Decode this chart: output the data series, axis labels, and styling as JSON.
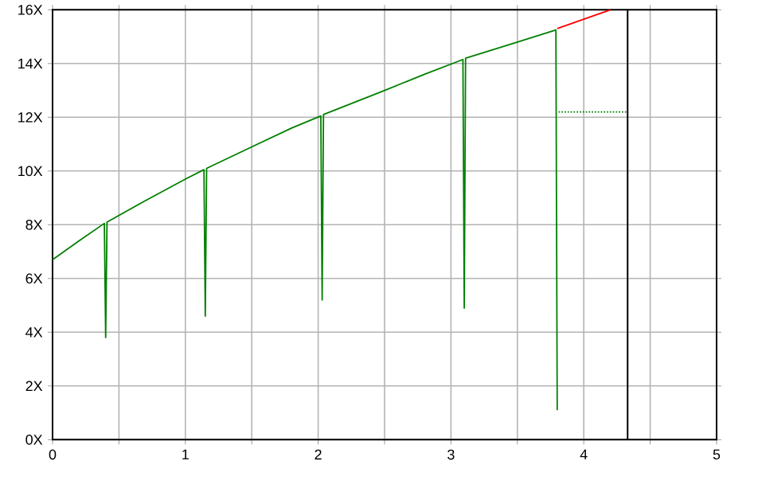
{
  "chart_data": {
    "type": "line",
    "series": [
      {
        "color": "#008000",
        "x": [
          0,
          0.2,
          0.39,
          0.4,
          0.41,
          0.7,
          1.0,
          1.14,
          1.15,
          1.16,
          1.5,
          1.8,
          2.02,
          2.03,
          2.04,
          2.5,
          2.8,
          3.09,
          3.1,
          3.11,
          3.5,
          3.79,
          3.8
        ],
        "values": [
          6.7,
          7.4,
          8.05,
          3.8,
          8.1,
          8.9,
          9.7,
          10.05,
          4.6,
          10.1,
          10.9,
          11.6,
          12.05,
          5.2,
          12.1,
          13.0,
          13.6,
          14.15,
          4.9,
          14.2,
          14.8,
          15.25,
          1.1
        ]
      },
      {
        "color": "#ff0000",
        "x": [
          3.8,
          4.0,
          4.2
        ],
        "values": [
          15.3,
          15.65,
          16.0
        ]
      },
      {
        "color": "#008000",
        "line_style": "dotted",
        "x": [
          3.81,
          4.33
        ],
        "values": [
          12.2,
          12.2
        ]
      }
    ],
    "ref_lines": [
      {
        "axis": "x",
        "value": 4.33,
        "color": "#000000"
      }
    ],
    "xlim": [
      0,
      5
    ],
    "ylim": [
      0,
      16
    ],
    "xticks": [
      0,
      {
        "value": 0.5,
        "label": null
      },
      1,
      {
        "value": 1.5,
        "label": null
      },
      2,
      {
        "value": 2.5,
        "label": null
      },
      3,
      {
        "value": 3.5,
        "label": null
      },
      4,
      {
        "value": 4.5,
        "label": null
      },
      5
    ],
    "yticks": [
      {
        "value": 0,
        "label": "0X"
      },
      {
        "value": 2,
        "label": "2X"
      },
      {
        "value": 4,
        "label": "4X"
      },
      {
        "value": 6,
        "label": "6X"
      },
      {
        "value": 8,
        "label": "8X"
      },
      {
        "value": 10,
        "label": "10X"
      },
      {
        "value": 12,
        "label": "12X"
      },
      {
        "value": 14,
        "label": "14X"
      },
      {
        "value": 16,
        "label": "16X"
      }
    ],
    "grid": true
  }
}
